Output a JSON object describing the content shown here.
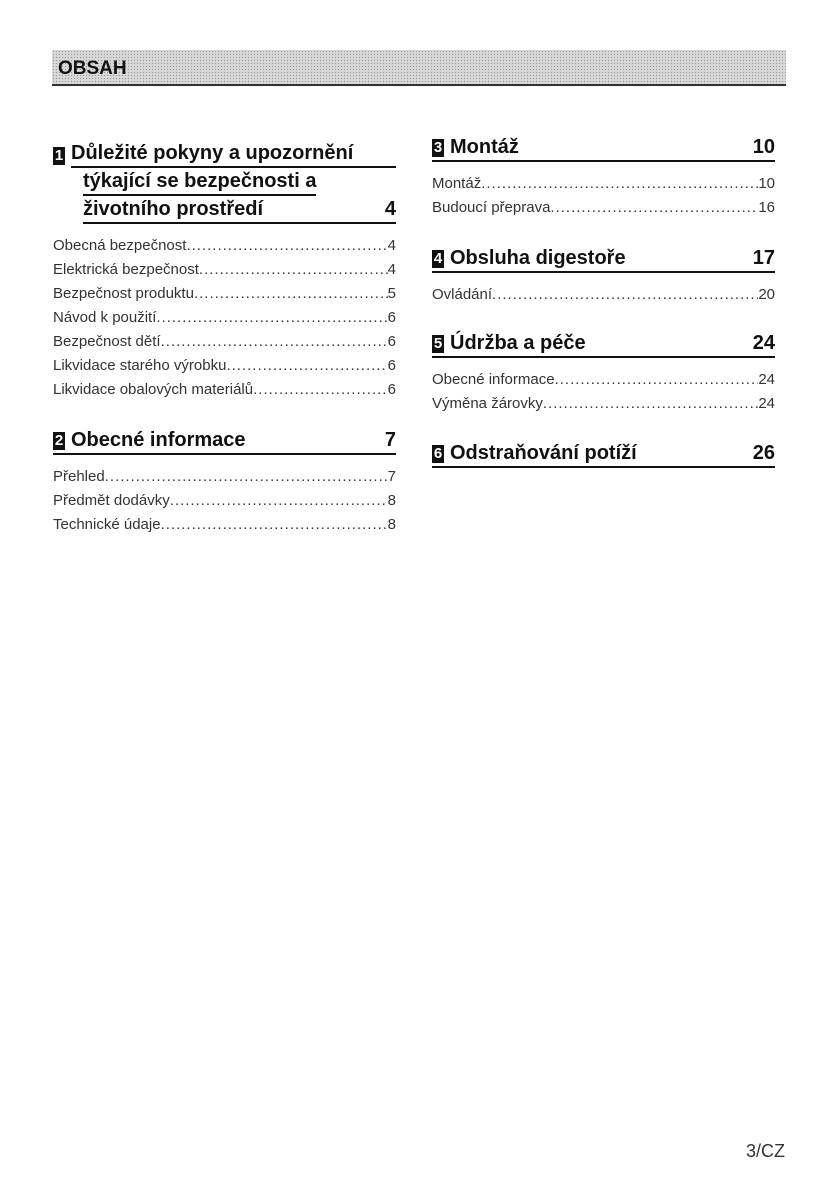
{
  "header": {
    "title": "OBSAH"
  },
  "sections": [
    {
      "num": "1",
      "title_lines": [
        "Důležité pokyny a upozornění",
        "týkající se bezpečnosti a",
        "životního prostředí"
      ],
      "page": "4",
      "entries": [
        {
          "t": "Obecná bezpečnost",
          "p": "4"
        },
        {
          "t": "Elektrická bezpečnost",
          "p": "4"
        },
        {
          "t": "Bezpečnost produktu",
          "p": "5"
        },
        {
          "t": "Návod k použití",
          "p": "6"
        },
        {
          "t": "Bezpečnost dětí",
          "p": "6"
        },
        {
          "t": "Likvidace starého výrobku",
          "p": "6"
        },
        {
          "t": "Likvidace obalových materiálů",
          "p": "6"
        }
      ]
    },
    {
      "num": "2",
      "title": "Obecné informace",
      "page": "7",
      "entries": [
        {
          "t": "Přehled",
          "p": "7"
        },
        {
          "t": "Předmět dodávky",
          "p": "8"
        },
        {
          "t": "Technické údaje",
          "p": "8"
        }
      ]
    },
    {
      "num": "3",
      "title": "Montáž",
      "page": "10",
      "entries": [
        {
          "t": "Montáž",
          "p": "10"
        },
        {
          "t": "Budoucí přeprava",
          "p": "16"
        }
      ]
    },
    {
      "num": "4",
      "title": "Obsluha digestoře",
      "page": "17",
      "entries": [
        {
          "t": "Ovládání",
          "p": "20"
        }
      ]
    },
    {
      "num": "5",
      "title": "Údržba a péče",
      "page": "24",
      "entries": [
        {
          "t": "Obecné informace",
          "p": "24"
        },
        {
          "t": "Výměna žárovky",
          "p": "24"
        }
      ]
    },
    {
      "num": "6",
      "title": "Odstraňování potíží",
      "page": "26",
      "entries": []
    }
  ],
  "footer": {
    "page": "3/CZ"
  }
}
